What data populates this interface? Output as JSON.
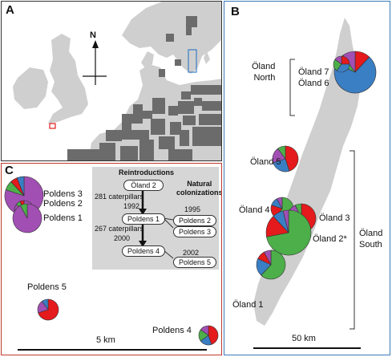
{
  "panels": {
    "a": {
      "label": "A",
      "compass": "N"
    },
    "b": {
      "label": "B",
      "sites": {
        "north_group": "Öland\nNorth",
        "oland7": "Öland 7",
        "oland6": "Öland 6",
        "oland5": "Öland 5",
        "oland4": "Öland 4",
        "oland3": "Öland 3",
        "oland2": "Öland 2*",
        "oland1": "Öland 1",
        "south_group": "Öland\nSouth"
      },
      "scale": "50 km"
    },
    "c": {
      "label": "C",
      "sites": {
        "poldens3": "Poldens 3",
        "poldens2": "Poldens 2",
        "poldens1": "Poldens 1",
        "poldens5": "Poldens 5",
        "poldens4": "Poldens 4"
      },
      "scale": "5 km",
      "inset": {
        "reintro_title": "Reintroductions",
        "natural_title": "Natural\ncolonizations",
        "oland2": "Öland 2",
        "caterpillars1": "281 caterpillars",
        "year1992": "1992",
        "poldens1": "Poldens 1",
        "year1995": "1995",
        "poldens2": "Poldens 2",
        "poldens3": "Poldens 3",
        "caterpillars2": "267 caterpillars",
        "year2000": "2000",
        "poldens4": "Poldens 4",
        "year2002": "2002",
        "poldens5": "Poldens 5"
      }
    }
  },
  "colors": {
    "blue": "#3a7ec4",
    "red": "#e41a1c",
    "green": "#4daf4a",
    "purple": "#a14fb3",
    "land": "#cfcfcf",
    "grid": "#6b6b6b"
  }
}
